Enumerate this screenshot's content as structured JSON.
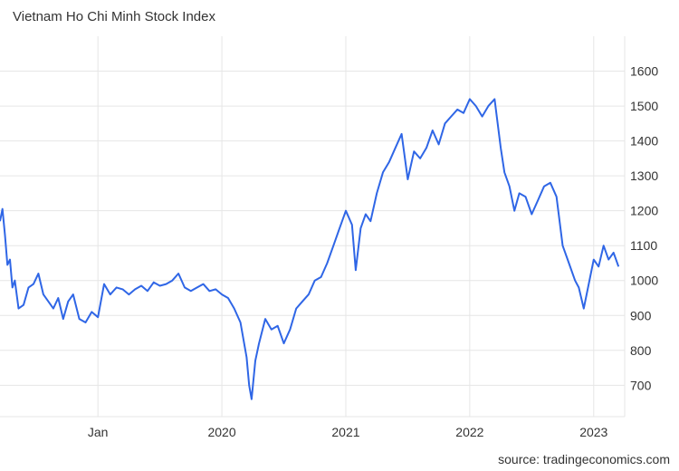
{
  "chart_data": {
    "type": "line",
    "title": "Vietnam Ho Chi Minh Stock Index",
    "source": "source: tradingeconomics.com",
    "xlabel": "",
    "ylabel": "",
    "x_ticks": [
      {
        "label": "Jan",
        "value": 2019.0
      },
      {
        "label": "2020",
        "value": 2020.0
      },
      {
        "label": "2021",
        "value": 2021.0
      },
      {
        "label": "2022",
        "value": 2022.0
      },
      {
        "label": "2023",
        "value": 2023.0
      }
    ],
    "y_ticks": [
      700,
      800,
      900,
      1000,
      1100,
      1200,
      1300,
      1400,
      1500,
      1600
    ],
    "xlim": [
      2018.21,
      2023.25
    ],
    "ylim": [
      610,
      1700
    ],
    "grid": true,
    "line_color": "#2f66e6",
    "series": [
      {
        "x": [
          2018.21,
          2018.23,
          2018.25,
          2018.27,
          2018.29,
          2018.31,
          2018.33,
          2018.36,
          2018.4,
          2018.44,
          2018.48,
          2018.52,
          2018.56,
          2018.6,
          2018.64,
          2018.68,
          2018.72,
          2018.76,
          2018.8,
          2018.85,
          2018.9,
          2018.95,
          2019.0,
          2019.05,
          2019.1,
          2019.15,
          2019.2,
          2019.25,
          2019.3,
          2019.35,
          2019.4,
          2019.45,
          2019.5,
          2019.55,
          2019.6,
          2019.65,
          2019.7,
          2019.75,
          2019.8,
          2019.85,
          2019.9,
          2019.95,
          2020.0,
          2020.05,
          2020.1,
          2020.15,
          2020.2,
          2020.22,
          2020.24,
          2020.27,
          2020.3,
          2020.35,
          2020.4,
          2020.45,
          2020.5,
          2020.55,
          2020.6,
          2020.65,
          2020.7,
          2020.75,
          2020.8,
          2020.85,
          2020.9,
          2020.95,
          2021.0,
          2021.05,
          2021.08,
          2021.12,
          2021.16,
          2021.2,
          2021.25,
          2021.3,
          2021.35,
          2021.4,
          2021.45,
          2021.5,
          2021.55,
          2021.6,
          2021.65,
          2021.7,
          2021.75,
          2021.8,
          2021.85,
          2021.9,
          2021.95,
          2022.0,
          2022.05,
          2022.1,
          2022.15,
          2022.2,
          2022.25,
          2022.28,
          2022.32,
          2022.36,
          2022.4,
          2022.45,
          2022.5,
          2022.55,
          2022.6,
          2022.65,
          2022.7,
          2022.75,
          2022.8,
          2022.85,
          2022.88,
          2022.92,
          2022.96,
          2023.0,
          2023.04,
          2023.08,
          2023.12,
          2023.16,
          2023.2
        ],
        "values": [
          1170,
          1205,
          1130,
          1045,
          1060,
          980,
          1000,
          920,
          930,
          980,
          990,
          1020,
          960,
          940,
          920,
          950,
          890,
          940,
          960,
          890,
          880,
          910,
          895,
          990,
          960,
          980,
          975,
          960,
          975,
          985,
          970,
          995,
          985,
          990,
          1000,
          1020,
          980,
          970,
          980,
          990,
          970,
          975,
          960,
          950,
          920,
          880,
          780,
          700,
          660,
          770,
          820,
          890,
          860,
          870,
          820,
          860,
          920,
          940,
          960,
          1000,
          1010,
          1050,
          1100,
          1150,
          1200,
          1160,
          1030,
          1150,
          1190,
          1170,
          1250,
          1310,
          1340,
          1380,
          1420,
          1290,
          1370,
          1350,
          1380,
          1430,
          1390,
          1450,
          1470,
          1490,
          1480,
          1520,
          1500,
          1470,
          1500,
          1520,
          1380,
          1310,
          1270,
          1200,
          1250,
          1240,
          1190,
          1230,
          1270,
          1280,
          1240,
          1100,
          1050,
          1000,
          980,
          920,
          990,
          1060,
          1040,
          1100,
          1060,
          1080,
          1040
        ]
      }
    ]
  }
}
